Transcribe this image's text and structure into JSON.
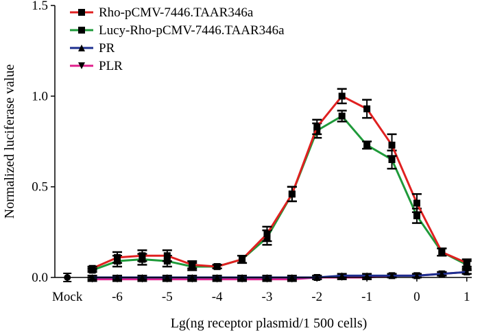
{
  "chart_data": {
    "type": "line",
    "xlabel": "Lg(ng receptor plasmid/1 500 cells)",
    "ylabel": "Normalized luciferase value",
    "xlim": [
      -7.25,
      1.1
    ],
    "ylim": [
      0,
      1.5
    ],
    "x_tick_labels": [
      "Mock",
      "-6",
      "-5",
      "-4",
      "-3",
      "-2",
      "-1",
      "0",
      "1"
    ],
    "y_tick_labels": [
      "0.0",
      "0.5",
      "1.0",
      "1.5"
    ],
    "grid": false,
    "legend_position": "top-left",
    "mock": {
      "x": -7.0,
      "values": [
        0.0,
        0.0,
        0.0,
        0.0
      ]
    },
    "x": [
      -6.5,
      -6,
      -5.5,
      -5,
      -4.5,
      -4,
      -3.5,
      -3,
      -2.5,
      -2,
      -1.5,
      -1,
      -0.5,
      0,
      0.5,
      1
    ],
    "series": [
      {
        "name": "Rho-pCMV-7446.TAAR346a",
        "color": "#e02020",
        "marker": "square",
        "values": [
          0.05,
          0.11,
          0.12,
          0.12,
          0.07,
          0.06,
          0.1,
          0.24,
          0.46,
          0.83,
          1.0,
          0.93,
          0.73,
          0.41,
          0.14,
          0.08
        ],
        "errors": [
          0.01,
          0.03,
          0.03,
          0.03,
          0.02,
          0.01,
          0.02,
          0.04,
          0.04,
          0.04,
          0.04,
          0.05,
          0.06,
          0.05,
          0.02,
          0.02
        ]
      },
      {
        "name": "Lucy-Rho-pCMV-7446.TAAR346a",
        "color": "#1f9a3a",
        "marker": "square",
        "values": [
          0.04,
          0.09,
          0.1,
          0.09,
          0.06,
          0.06,
          0.1,
          0.22,
          0.46,
          0.81,
          0.89,
          0.73,
          0.65,
          0.34,
          0.14,
          0.07
        ],
        "errors": [
          0.01,
          0.03,
          0.03,
          0.03,
          0.02,
          0.01,
          0.02,
          0.04,
          0.04,
          0.04,
          0.03,
          0.02,
          0.05,
          0.04,
          0.02,
          0.02
        ]
      },
      {
        "name": "PR",
        "color": "#1c2f8f",
        "marker": "triangle-up",
        "values": [
          0.0,
          0.0,
          0.0,
          0.0,
          0.0,
          0.0,
          0.0,
          0.0,
          0.0,
          0.0,
          0.01,
          0.01,
          0.01,
          0.01,
          0.02,
          0.03
        ],
        "errors": [
          0.01,
          0.01,
          0.01,
          0.01,
          0.01,
          0.01,
          0.01,
          0.01,
          0.01,
          0.01,
          0.01,
          0.01,
          0.01,
          0.01,
          0.01,
          0.01
        ]
      },
      {
        "name": "PLR",
        "color": "#e0208c",
        "marker": "triangle-down",
        "values": [
          -0.01,
          -0.01,
          -0.01,
          -0.01,
          -0.01,
          -0.01,
          -0.01,
          -0.01,
          -0.01,
          0.0,
          0.0,
          0.0,
          0.01,
          0.01,
          0.02,
          0.03
        ],
        "errors": [
          0.01,
          0.01,
          0.01,
          0.01,
          0.01,
          0.01,
          0.01,
          0.01,
          0.01,
          0.01,
          0.01,
          0.01,
          0.01,
          0.01,
          0.01,
          0.01
        ]
      }
    ]
  }
}
